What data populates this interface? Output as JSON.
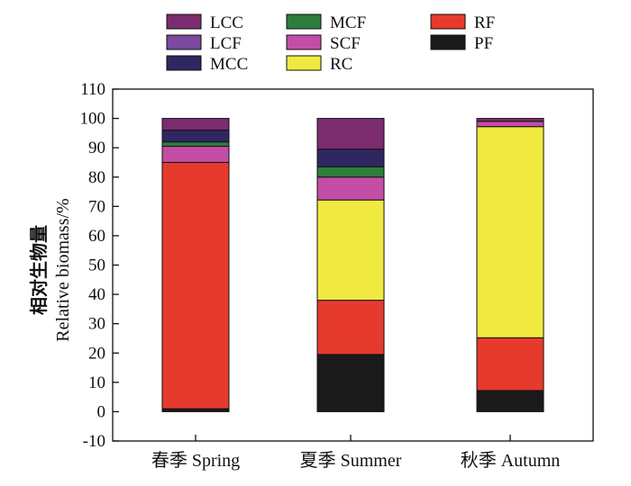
{
  "chart_data": {
    "type": "bar",
    "stacked": true,
    "categories": [
      "春季 Spring",
      "夏季 Summer",
      "秋季 Autumn"
    ],
    "ylabel_cn": "相对生物量",
    "ylabel_en": "Relative biomass/%",
    "xlabel": "",
    "title": "",
    "ylim": [
      -10,
      110
    ],
    "yticks": [
      -10,
      0,
      10,
      20,
      30,
      40,
      50,
      60,
      70,
      80,
      90,
      100,
      110
    ],
    "grid": false,
    "legend_position": "top",
    "legend_order": [
      "LCC",
      "MCF",
      "RF",
      "LCF",
      "SCF",
      "PF",
      "MCC",
      "RC"
    ],
    "series": [
      {
        "name": "PF",
        "color": "#1a1a1a",
        "values": [
          1.0,
          19.5,
          7.2
        ]
      },
      {
        "name": "RF",
        "color": "#e63a2e",
        "values": [
          84.0,
          18.5,
          18.0
        ]
      },
      {
        "name": "RC",
        "color": "#f0ea40",
        "values": [
          0,
          34.2,
          72.0
        ]
      },
      {
        "name": "SCF",
        "color": "#c44da6",
        "values": [
          5.5,
          7.8,
          1.8
        ]
      },
      {
        "name": "MCF",
        "color": "#2e7d3c",
        "values": [
          1.5,
          3.5,
          0
        ]
      },
      {
        "name": "MCC",
        "color": "#2f2761",
        "values": [
          4.0,
          6.0,
          0
        ]
      },
      {
        "name": "LCF",
        "color": "#7a4a9e",
        "values": [
          0,
          0,
          0
        ]
      },
      {
        "name": "LCC",
        "color": "#7b2c6e",
        "values": [
          4.0,
          10.5,
          1.0
        ]
      }
    ]
  }
}
